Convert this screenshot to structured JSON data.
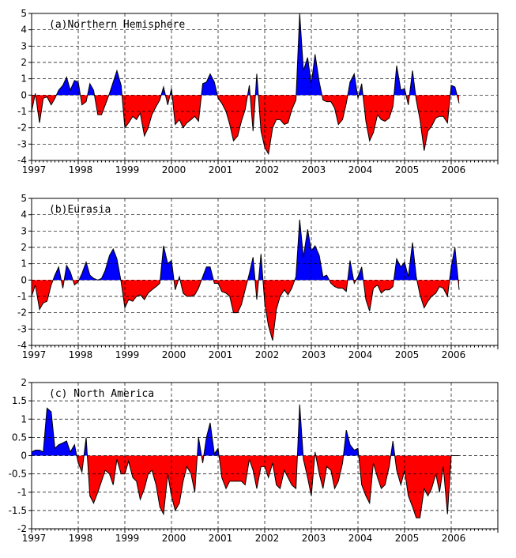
{
  "chart_data": [
    {
      "type": "area",
      "title": "(a)Northern Hemisphere",
      "xlabel": "",
      "ylabel": "",
      "xlim": [
        1997,
        2007
      ],
      "ylim": [
        -4,
        5
      ],
      "yticks": [
        -4,
        -3,
        -2,
        -1,
        0,
        1,
        2,
        3,
        4,
        5
      ],
      "xticks": [
        1997,
        1998,
        1999,
        2000,
        2001,
        2002,
        2003,
        2004,
        2005,
        2006
      ],
      "grid": true,
      "colors": {
        "positive": "#0000ff",
        "negative": "#ff0000"
      },
      "x": [
        1997.0,
        1997.08,
        1997.17,
        1997.25,
        1997.33,
        1997.42,
        1997.5,
        1997.58,
        1997.67,
        1997.75,
        1997.83,
        1997.92,
        1998.0,
        1998.08,
        1998.17,
        1998.25,
        1998.33,
        1998.42,
        1998.5,
        1998.58,
        1998.67,
        1998.75,
        1998.83,
        1998.92,
        1999.0,
        1999.08,
        1999.17,
        1999.25,
        1999.33,
        1999.42,
        1999.5,
        1999.58,
        1999.67,
        1999.75,
        1999.83,
        1999.92,
        2000.0,
        2000.08,
        2000.17,
        2000.25,
        2000.33,
        2000.42,
        2000.5,
        2000.58,
        2000.67,
        2000.75,
        2000.83,
        2000.92,
        2001.0,
        2001.08,
        2001.17,
        2001.25,
        2001.33,
        2001.42,
        2001.5,
        2001.58,
        2001.67,
        2001.75,
        2001.83,
        2001.92,
        2002.0,
        2002.08,
        2002.17,
        2002.25,
        2002.33,
        2002.42,
        2002.5,
        2002.58,
        2002.67,
        2002.75,
        2002.83,
        2002.92,
        2003.0,
        2003.08,
        2003.17,
        2003.25,
        2003.33,
        2003.42,
        2003.5,
        2003.58,
        2003.67,
        2003.75,
        2003.83,
        2003.92,
        2004.0,
        2004.08,
        2004.17,
        2004.25,
        2004.33,
        2004.42,
        2004.5,
        2004.58,
        2004.67,
        2004.75,
        2004.83,
        2004.92,
        2005.0,
        2005.08,
        2005.17,
        2005.25,
        2005.33,
        2005.42,
        2005.5,
        2005.58,
        2005.67,
        2005.75,
        2005.83,
        2005.92,
        2006.0,
        2006.08,
        2006.17
      ],
      "values": [
        -1.0,
        0.1,
        -1.7,
        -0.2,
        -0.1,
        -0.6,
        -0.2,
        0.3,
        0.6,
        1.1,
        0.3,
        0.9,
        0.8,
        -0.6,
        -0.4,
        0.7,
        0.3,
        -1.2,
        -1.2,
        -0.6,
        0.1,
        0.8,
        1.5,
        0.6,
        -2.0,
        -1.7,
        -1.3,
        -1.5,
        -1.1,
        -2.5,
        -2.0,
        -1.2,
        -0.7,
        -0.3,
        0.5,
        -0.6,
        0.4,
        -1.8,
        -1.5,
        -2.0,
        -1.7,
        -1.5,
        -1.3,
        -1.6,
        0.7,
        0.8,
        1.3,
        0.8,
        -0.2,
        -0.5,
        -1.0,
        -1.8,
        -2.8,
        -2.5,
        -1.6,
        -0.9,
        0.6,
        -2.2,
        1.3,
        -2.2,
        -3.2,
        -3.6,
        -2.0,
        -1.5,
        -1.5,
        -1.8,
        -1.7,
        -0.9,
        -0.3,
        5.0,
        1.5,
        2.3,
        0.7,
        2.5,
        0.8,
        -0.3,
        -0.4,
        -0.4,
        -0.8,
        -1.8,
        -1.5,
        -0.5,
        0.8,
        1.3,
        -0.2,
        0.7,
        -1.6,
        -2.8,
        -2.3,
        -1.2,
        -1.5,
        -1.6,
        -1.4,
        -0.7,
        1.8,
        0.3,
        0.4,
        -0.6,
        1.5,
        -0.3,
        -1.5,
        -3.4,
        -2.2,
        -1.9,
        -1.4,
        -1.3,
        -1.3,
        -1.7,
        0.6,
        0.5,
        -0.5
      ]
    },
    {
      "type": "area",
      "title": "(b)Eurasia",
      "xlabel": "",
      "ylabel": "",
      "xlim": [
        1997,
        2007
      ],
      "ylim": [
        -4,
        5
      ],
      "yticks": [
        -4,
        -3,
        -2,
        -1,
        0,
        1,
        2,
        3,
        4,
        5
      ],
      "xticks": [
        1997,
        1998,
        1999,
        2000,
        2001,
        2002,
        2003,
        2004,
        2005,
        2006
      ],
      "grid": true,
      "colors": {
        "positive": "#0000ff",
        "negative": "#ff0000"
      },
      "x": [
        1997.0,
        1997.08,
        1997.17,
        1997.25,
        1997.33,
        1997.42,
        1997.5,
        1997.58,
        1997.67,
        1997.75,
        1997.83,
        1997.92,
        1998.0,
        1998.08,
        1998.17,
        1998.25,
        1998.33,
        1998.42,
        1998.5,
        1998.58,
        1998.67,
        1998.75,
        1998.83,
        1998.92,
        1999.0,
        1999.08,
        1999.17,
        1999.25,
        1999.33,
        1999.42,
        1999.5,
        1999.58,
        1999.67,
        1999.75,
        1999.83,
        1999.92,
        2000.0,
        2000.08,
        2000.17,
        2000.25,
        2000.33,
        2000.42,
        2000.5,
        2000.58,
        2000.67,
        2000.75,
        2000.83,
        2000.92,
        2001.0,
        2001.08,
        2001.17,
        2001.25,
        2001.33,
        2001.42,
        2001.5,
        2001.58,
        2001.67,
        2001.75,
        2001.83,
        2001.92,
        2002.0,
        2002.08,
        2002.17,
        2002.25,
        2002.33,
        2002.42,
        2002.5,
        2002.58,
        2002.67,
        2002.75,
        2002.83,
        2002.92,
        2003.0,
        2003.08,
        2003.17,
        2003.25,
        2003.33,
        2003.42,
        2003.5,
        2003.58,
        2003.67,
        2003.75,
        2003.83,
        2003.92,
        2004.0,
        2004.08,
        2004.17,
        2004.25,
        2004.33,
        2004.42,
        2004.5,
        2004.58,
        2004.67,
        2004.75,
        2004.83,
        2004.92,
        2005.0,
        2005.08,
        2005.17,
        2005.25,
        2005.33,
        2005.42,
        2005.5,
        2005.58,
        2005.67,
        2005.75,
        2005.83,
        2005.92,
        2006.0,
        2006.08,
        2006.17
      ],
      "values": [
        -1.0,
        -0.3,
        -1.8,
        -1.4,
        -1.3,
        -0.3,
        0.3,
        0.8,
        -0.5,
        0.9,
        0.5,
        -0.3,
        -0.1,
        0.4,
        1.1,
        0.3,
        0.1,
        0.0,
        0.1,
        0.6,
        1.5,
        1.9,
        1.3,
        -0.1,
        -1.7,
        -1.2,
        -1.3,
        -1.0,
        -0.9,
        -1.2,
        -0.8,
        -0.6,
        -0.4,
        -0.2,
        2.1,
        1.0,
        1.2,
        -0.6,
        0.2,
        -0.8,
        -1.0,
        -1.0,
        -0.9,
        -0.5,
        0.2,
        0.8,
        0.8,
        -0.2,
        -0.2,
        -0.7,
        -0.8,
        -1.0,
        -2.0,
        -2.0,
        -1.5,
        -0.6,
        0.4,
        1.4,
        -1.2,
        1.6,
        -1.4,
        -2.8,
        -3.7,
        -1.8,
        -1.0,
        -0.6,
        -0.9,
        -0.5,
        0.2,
        3.7,
        1.4,
        3.1,
        1.8,
        2.1,
        1.5,
        0.2,
        0.3,
        -0.2,
        -0.4,
        -0.5,
        -0.5,
        -0.7,
        1.2,
        -0.2,
        0.2,
        0.8,
        -1.2,
        -1.9,
        -0.5,
        -0.3,
        -0.8,
        -0.6,
        -0.6,
        -0.4,
        1.3,
        0.8,
        1.1,
        0.2,
        2.3,
        0.2,
        -0.9,
        -1.7,
        -1.3,
        -1.0,
        -0.8,
        -0.4,
        -0.5,
        -1.0,
        0.8,
        2.0,
        -0.6
      ]
    },
    {
      "type": "area",
      "title": "(c) North America",
      "xlabel": "",
      "ylabel": "",
      "xlim": [
        1997,
        2007
      ],
      "ylim": [
        -2,
        2
      ],
      "yticks": [
        -2,
        -1.5,
        -1,
        -0.5,
        0,
        0.5,
        1,
        1.5,
        2
      ],
      "xticks": [
        1997,
        1998,
        1999,
        2000,
        2001,
        2002,
        2003,
        2004,
        2005,
        2006
      ],
      "grid": true,
      "colors": {
        "positive": "#0000ff",
        "negative": "#ff0000"
      },
      "x": [
        1997.0,
        1997.08,
        1997.17,
        1997.25,
        1997.33,
        1997.42,
        1997.5,
        1997.58,
        1997.67,
        1997.75,
        1997.83,
        1997.92,
        1998.0,
        1998.08,
        1998.17,
        1998.25,
        1998.33,
        1998.42,
        1998.5,
        1998.58,
        1998.67,
        1998.75,
        1998.83,
        1998.92,
        1999.0,
        1999.08,
        1999.17,
        1999.25,
        1999.33,
        1999.42,
        1999.5,
        1999.58,
        1999.67,
        1999.75,
        1999.83,
        1999.92,
        2000.0,
        2000.08,
        2000.17,
        2000.25,
        2000.33,
        2000.42,
        2000.5,
        2000.58,
        2000.67,
        2000.75,
        2000.83,
        2000.92,
        2001.0,
        2001.08,
        2001.17,
        2001.25,
        2001.33,
        2001.42,
        2001.5,
        2001.58,
        2001.67,
        2001.75,
        2001.83,
        2001.92,
        2002.0,
        2002.08,
        2002.17,
        2002.25,
        2002.33,
        2002.42,
        2002.5,
        2002.58,
        2002.67,
        2002.75,
        2002.83,
        2002.92,
        2003.0,
        2003.08,
        2003.17,
        2003.25,
        2003.33,
        2003.42,
        2003.5,
        2003.58,
        2003.67,
        2003.75,
        2003.83,
        2003.92,
        2004.0,
        2004.08,
        2004.17,
        2004.25,
        2004.33,
        2004.42,
        2004.5,
        2004.58,
        2004.67,
        2004.75,
        2004.83,
        2004.92,
        2005.0,
        2005.08,
        2005.17,
        2005.25,
        2005.33,
        2005.42,
        2005.5,
        2005.58,
        2005.67,
        2005.75,
        2005.83,
        2005.92,
        2006.0,
        2006.08,
        2006.17
      ],
      "values": [
        0.1,
        0.15,
        0.15,
        0.1,
        1.3,
        1.2,
        0.2,
        0.3,
        0.35,
        0.4,
        0.1,
        0.3,
        -0.2,
        -0.45,
        0.5,
        -1.1,
        -1.3,
        -1.0,
        -0.7,
        -0.4,
        -0.5,
        -0.8,
        -0.1,
        -0.5,
        -0.5,
        -0.15,
        -0.6,
        -0.7,
        -1.2,
        -0.9,
        -0.5,
        -0.4,
        -0.8,
        -1.4,
        -1.6,
        -0.5,
        -1.1,
        -1.5,
        -1.3,
        -0.7,
        -0.3,
        -0.5,
        -1.0,
        0.5,
        -0.2,
        0.5,
        0.9,
        0.05,
        0.2,
        -0.6,
        -0.9,
        -0.7,
        -0.7,
        -0.7,
        -0.7,
        -0.8,
        -0.1,
        -0.4,
        -0.9,
        -0.3,
        -0.3,
        -0.6,
        -0.2,
        -0.8,
        -0.9,
        -0.4,
        -0.6,
        -0.8,
        -0.9,
        1.4,
        -0.1,
        -0.6,
        -1.1,
        0.1,
        -0.5,
        -0.9,
        -0.3,
        -0.4,
        -0.9,
        -0.7,
        -0.2,
        0.7,
        0.3,
        0.15,
        0.2,
        -0.8,
        -1.1,
        -1.3,
        -0.2,
        -0.6,
        -0.9,
        -0.8,
        -0.3,
        0.4,
        -0.4,
        -0.8,
        -0.4,
        -1.1,
        -1.4,
        -1.7,
        -1.7,
        -0.9,
        -1.1,
        -0.9,
        -0.5,
        -1.0,
        -0.3,
        -1.6,
        0.0,
        0.0,
        0.0
      ]
    }
  ]
}
